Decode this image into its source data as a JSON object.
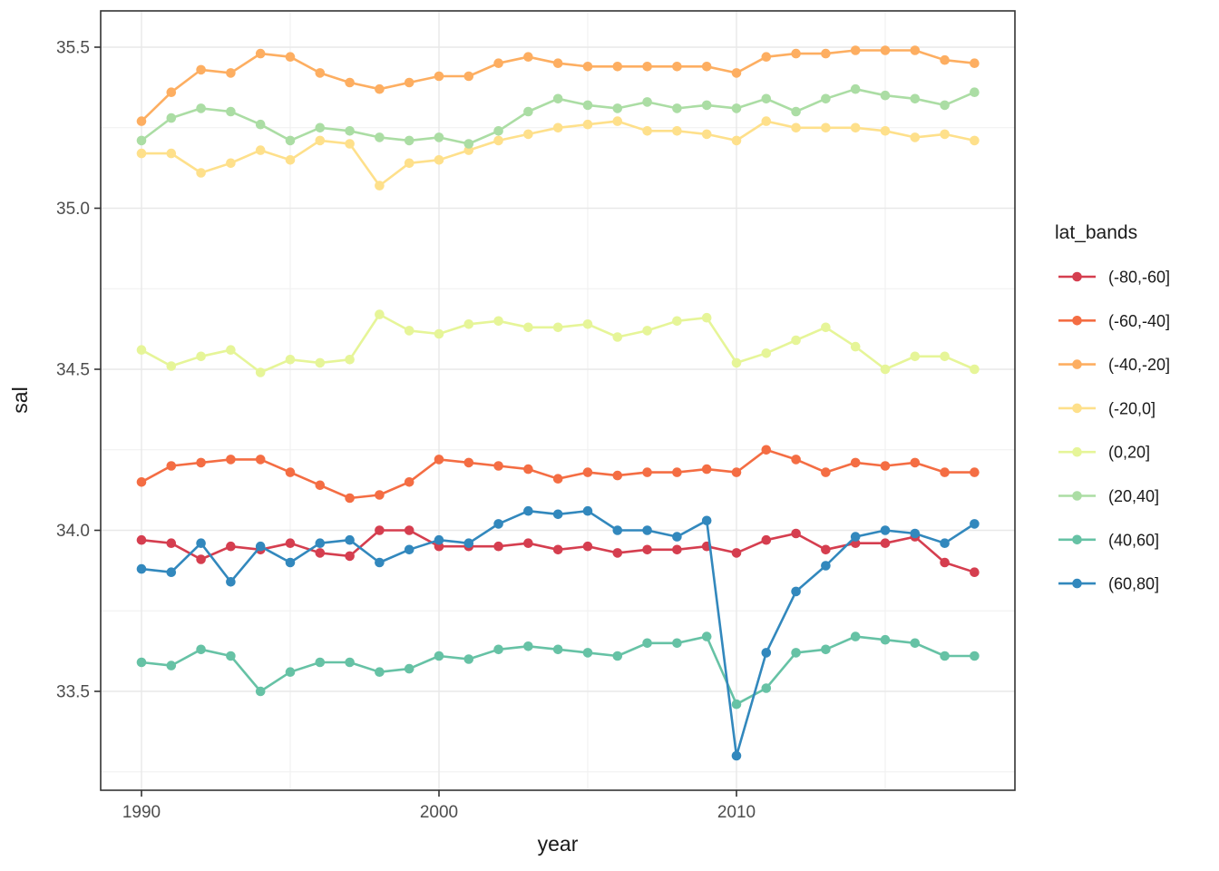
{
  "figure": {
    "background": "#ffffff",
    "panel": {
      "background": "#ffffff",
      "border_color": "#333333",
      "grid_major_color": "#e8e8e8",
      "grid_minor_color": "#efefef"
    }
  },
  "axes": {
    "x": {
      "title": "year",
      "tick_labels": [
        "1990",
        "2000",
        "2010"
      ],
      "tick_values": [
        1990,
        2000,
        2010
      ],
      "minor_values": [
        1995,
        2005,
        2015
      ]
    },
    "y": {
      "title": "sal",
      "tick_labels": [
        "33.5",
        "34.0",
        "34.5",
        "35.0",
        "35.5"
      ],
      "tick_values": [
        33.5,
        34.0,
        34.5,
        35.0,
        35.5
      ],
      "minor_values": [
        33.25,
        33.75,
        34.25,
        34.75,
        35.25
      ]
    }
  },
  "legend": {
    "title": "lat_bands",
    "position": "right"
  },
  "chart_data": {
    "type": "line",
    "title": "",
    "xlabel": "year",
    "ylabel": "sal",
    "xlim": [
      1988.6,
      2019.4
    ],
    "ylim": [
      33.19,
      35.61
    ],
    "grid": "major+minor",
    "legend_position": "right",
    "marker": "circle",
    "palette": "Spectral",
    "x": [
      1990,
      1991,
      1992,
      1993,
      1994,
      1995,
      1996,
      1997,
      1998,
      1999,
      2000,
      2001,
      2002,
      2003,
      2004,
      2005,
      2006,
      2007,
      2008,
      2009,
      2010,
      2011,
      2012,
      2013,
      2014,
      2015,
      2016,
      2017,
      2018
    ],
    "series": [
      {
        "name": "(-80,-60]",
        "color": "#d53e4f",
        "values": [
          33.97,
          33.96,
          33.91,
          33.95,
          33.94,
          33.96,
          33.93,
          33.92,
          34.0,
          34.0,
          33.95,
          33.95,
          33.95,
          33.96,
          33.94,
          33.95,
          33.93,
          33.94,
          33.94,
          33.95,
          33.93,
          33.97,
          33.99,
          33.94,
          33.96,
          33.96,
          33.98,
          33.9,
          33.87
        ]
      },
      {
        "name": "(-60,-40]",
        "color": "#f46d43",
        "values": [
          34.15,
          34.2,
          34.21,
          34.22,
          34.22,
          34.18,
          34.14,
          34.1,
          34.11,
          34.15,
          34.22,
          34.21,
          34.2,
          34.19,
          34.16,
          34.18,
          34.17,
          34.18,
          34.18,
          34.19,
          34.18,
          34.25,
          34.22,
          34.18,
          34.21,
          34.2,
          34.21,
          34.18,
          34.18
        ]
      },
      {
        "name": "(-40,-20]",
        "color": "#fdae61",
        "values": [
          35.27,
          35.36,
          35.43,
          35.42,
          35.48,
          35.47,
          35.42,
          35.39,
          35.37,
          35.39,
          35.41,
          35.41,
          35.45,
          35.47,
          35.45,
          35.44,
          35.44,
          35.44,
          35.44,
          35.44,
          35.42,
          35.47,
          35.48,
          35.48,
          35.49,
          35.49,
          35.49,
          35.46,
          35.45
        ]
      },
      {
        "name": "(-20,0]",
        "color": "#fee08b",
        "values": [
          35.17,
          35.17,
          35.11,
          35.14,
          35.18,
          35.15,
          35.21,
          35.2,
          35.07,
          35.14,
          35.15,
          35.18,
          35.21,
          35.23,
          35.25,
          35.26,
          35.27,
          35.24,
          35.24,
          35.23,
          35.21,
          35.27,
          35.25,
          35.25,
          35.25,
          35.24,
          35.22,
          35.23,
          35.21
        ]
      },
      {
        "name": "(0,20]",
        "color": "#e6f598",
        "values": [
          34.56,
          34.51,
          34.54,
          34.56,
          34.49,
          34.53,
          34.52,
          34.53,
          34.67,
          34.62,
          34.61,
          34.64,
          34.65,
          34.63,
          34.63,
          34.64,
          34.6,
          34.62,
          34.65,
          34.66,
          34.52,
          34.55,
          34.59,
          34.63,
          34.57,
          34.5,
          34.54,
          34.54,
          34.5
        ]
      },
      {
        "name": "(20,40]",
        "color": "#abdda4",
        "values": [
          35.21,
          35.28,
          35.31,
          35.3,
          35.26,
          35.21,
          35.25,
          35.24,
          35.22,
          35.21,
          35.22,
          35.2,
          35.24,
          35.3,
          35.34,
          35.32,
          35.31,
          35.33,
          35.31,
          35.32,
          35.31,
          35.34,
          35.3,
          35.34,
          35.37,
          35.35,
          35.34,
          35.32,
          35.36
        ]
      },
      {
        "name": "(40,60]",
        "color": "#66c2a5",
        "values": [
          33.59,
          33.58,
          33.63,
          33.61,
          33.5,
          33.56,
          33.59,
          33.59,
          33.56,
          33.57,
          33.61,
          33.6,
          33.63,
          33.64,
          33.63,
          33.62,
          33.61,
          33.65,
          33.65,
          33.67,
          33.46,
          33.51,
          33.62,
          33.63,
          33.67,
          33.66,
          33.65,
          33.61,
          33.61
        ]
      },
      {
        "name": "(60,80]",
        "color": "#3288bd",
        "values": [
          33.88,
          33.87,
          33.96,
          33.84,
          33.95,
          33.9,
          33.96,
          33.97,
          33.9,
          33.94,
          33.97,
          33.96,
          34.02,
          34.06,
          34.05,
          34.06,
          34.0,
          34.0,
          33.98,
          34.03,
          33.3,
          33.62,
          33.81,
          33.89,
          33.98,
          34.0,
          33.99,
          33.96,
          34.02
        ]
      }
    ]
  }
}
